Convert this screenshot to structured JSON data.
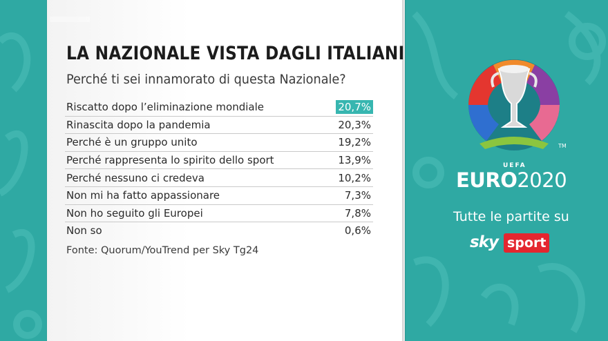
{
  "title": "LA NAZIONALE VISTA DAGLI ITALIANI",
  "subtitle": "Perché ti sei innamorato di questa Nazionale?",
  "rows": [
    {
      "label": "Riscatto dopo l’eliminazione mondiale",
      "value": "20,7%"
    },
    {
      "label": "Rinascita dopo la pandemia",
      "value": "20,3%"
    },
    {
      "label": "Perché è un gruppo unito",
      "value": "19,2%"
    },
    {
      "label": "Perché rappresenta lo spirito dello sport",
      "value": "13,9%"
    },
    {
      "label": "Perché nessuno ci credeva",
      "value": "10,2%"
    },
    {
      "label": "Non mi ha fatto appassionare",
      "value": "7,3%"
    },
    {
      "label": "Non ho seguito gli Europei",
      "value": "7,8%"
    },
    {
      "label": "Non so",
      "value": "0,6%"
    }
  ],
  "source": "Fonte: Quorum/YouTrend per Sky Tg24",
  "promo": {
    "uefa": "UEFA",
    "euro": "EURO",
    "year": "2020",
    "tm": "TM",
    "tagline": "Tutte le partite su",
    "sky": "sky",
    "sport": "sport"
  },
  "colors": {
    "background": "#2fa9a3",
    "highlight": "#37b6b0",
    "sport_red": "#e4262f"
  }
}
